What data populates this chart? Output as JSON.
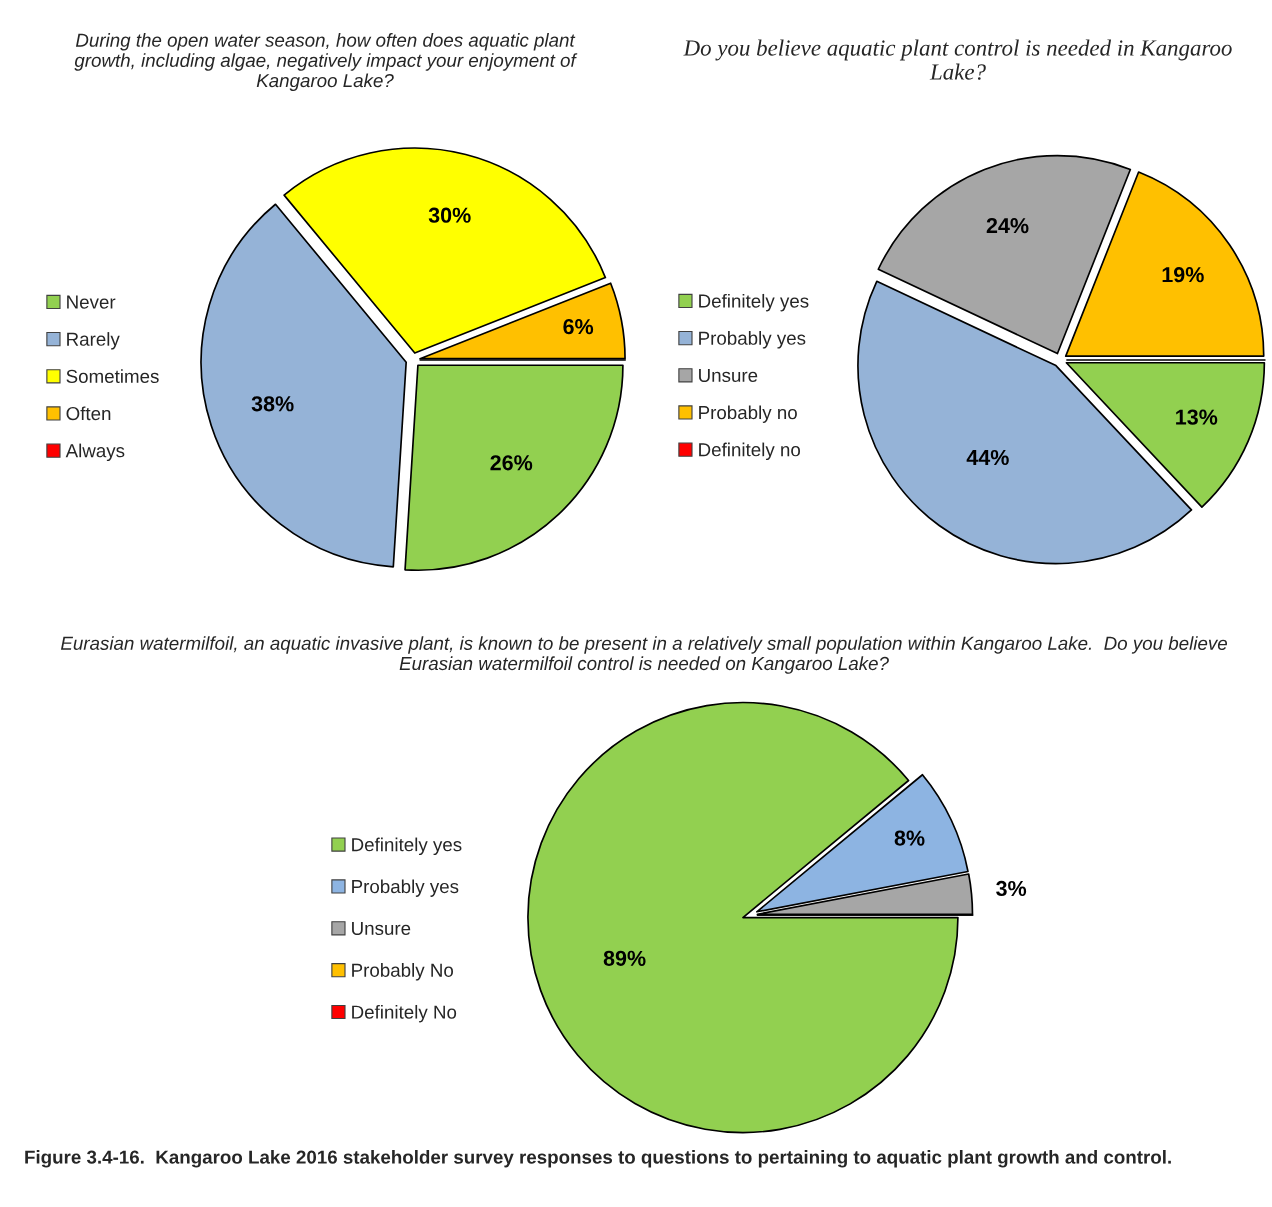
{
  "chart_data": [
    {
      "type": "pie",
      "title": "During the open water season, how often does aquatic plant growth, including algae, negatively impact your enjoyment of Kangaroo Lake?",
      "categories": [
        "Never",
        "Rarely",
        "Sometimes",
        "Often",
        "Always"
      ],
      "values": [
        26,
        38,
        30,
        6,
        0
      ],
      "colors": [
        "#92d050",
        "#95b3d7",
        "#ffff00",
        "#ffc000",
        "#ff0000"
      ],
      "value_labels": [
        "26%",
        "38%",
        "30%",
        "6%",
        null
      ],
      "legend": "left"
    },
    {
      "type": "pie",
      "title": "Do you believe aquatic plant control is needed in Kangaroo Lake?",
      "categories": [
        "Definitely yes",
        "Probably yes",
        "Unsure",
        "Probably no",
        "Definitely no"
      ],
      "values": [
        13,
        44,
        24,
        19,
        0
      ],
      "colors": [
        "#92d050",
        "#95b3d7",
        "#a6a6a6",
        "#ffc000",
        "#ff0000"
      ],
      "value_labels": [
        "13%",
        "44%",
        "24%",
        "19%",
        null
      ],
      "legend": "left"
    },
    {
      "type": "pie",
      "title": "Eurasian watermilfoil, an aquatic invasive plant, is known to be present in a relatively small population within Kangaroo Lake.  Do you believe Eurasian watermilfoil control is needed on Kangaroo Lake?",
      "categories": [
        "Definitely yes",
        "Probably yes",
        "Unsure",
        "Probably No",
        "Definitely No"
      ],
      "values": [
        89,
        8,
        3,
        0,
        0
      ],
      "colors": [
        "#92d050",
        "#8db4e2",
        "#a6a6a6",
        "#ffc000",
        "#ff0000"
      ],
      "value_labels": [
        "89%",
        "8%",
        "3%",
        null,
        null
      ],
      "legend": "left",
      "annotations": [
        "Figure 3.4-16.  Kangaroo Lake 2016 stakeholder survey responses to questions to pertaining to aquatic plant growth and control."
      ]
    }
  ]
}
